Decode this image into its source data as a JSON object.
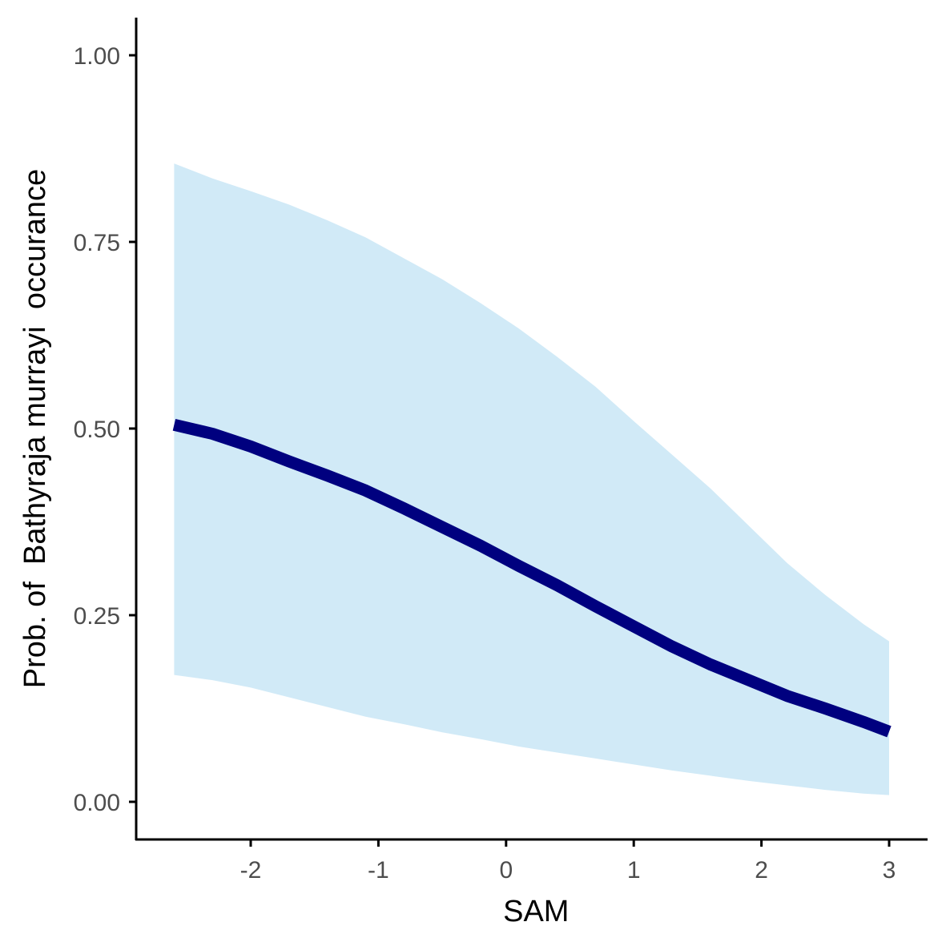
{
  "chart_data": {
    "type": "line",
    "title": "",
    "xlabel": "SAM",
    "ylabel": "Prob. of  Bathyraja murrayi  occurance",
    "xlim": [
      -2.88,
      3.3
    ],
    "ylim": [
      -0.05,
      1.05
    ],
    "x_ticks": [
      -2,
      -1,
      0,
      1,
      2,
      3
    ],
    "x_tick_labels": [
      "-2",
      "-1",
      "0",
      "1",
      "2",
      "3"
    ],
    "y_ticks": [
      0.0,
      0.25,
      0.5,
      0.75,
      1.0
    ],
    "y_tick_labels": [
      "0.00",
      "0.25",
      "0.50",
      "0.75",
      "1.00"
    ],
    "grid": false,
    "legend": "none",
    "colors": {
      "line": "#00007f",
      "ribbon": "#d1eaf7",
      "axis": "#000000",
      "tick_label": "#4d4d4d"
    },
    "series": [
      {
        "x": [
          -2.6,
          -2.3,
          -2.0,
          -1.7,
          -1.4,
          -1.1,
          -0.8,
          -0.5,
          -0.2,
          0.1,
          0.4,
          0.7,
          1.0,
          1.3,
          1.6,
          1.9,
          2.2,
          2.5,
          2.8,
          3.0
        ],
        "y": [
          0.505,
          0.493,
          0.476,
          0.456,
          0.437,
          0.417,
          0.393,
          0.368,
          0.343,
          0.316,
          0.29,
          0.262,
          0.235,
          0.208,
          0.184,
          0.163,
          0.142,
          0.125,
          0.107,
          0.094
        ],
        "lower": [
          0.17,
          0.163,
          0.153,
          0.14,
          0.127,
          0.114,
          0.104,
          0.093,
          0.084,
          0.074,
          0.066,
          0.058,
          0.05,
          0.042,
          0.035,
          0.028,
          0.022,
          0.016,
          0.011,
          0.009
        ],
        "upper": [
          0.855,
          0.835,
          0.818,
          0.8,
          0.779,
          0.756,
          0.728,
          0.7,
          0.668,
          0.634,
          0.596,
          0.556,
          0.51,
          0.465,
          0.42,
          0.37,
          0.32,
          0.277,
          0.238,
          0.215
        ]
      }
    ]
  }
}
